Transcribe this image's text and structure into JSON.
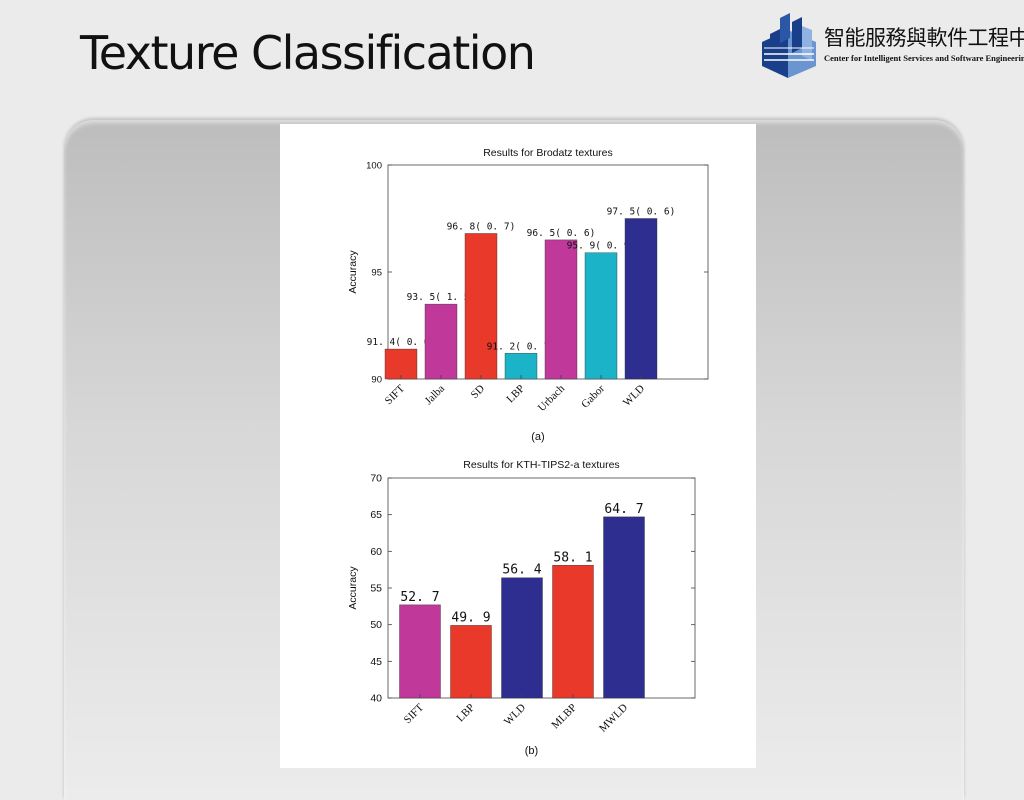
{
  "slide": {
    "title": "Texture Classification"
  },
  "logo": {
    "name_cn": "智能服務與軟件工程中心",
    "name_en": "Center for Intelligent Services and Software Engineering",
    "colors": {
      "dark": "#1a3f8a",
      "light": "#6b95d1"
    }
  },
  "chart_data": [
    {
      "type": "bar",
      "title": "Results for Brodatz textures",
      "caption": "(a)",
      "xlabel": "",
      "ylabel": "Accuracy",
      "ylim": [
        90,
        100
      ],
      "yticks": [
        "90",
        "95",
        "100"
      ],
      "categories": [
        "SIFT",
        "Jalba",
        "SD",
        "LBP",
        "Urbach",
        "Gabor",
        "WLD"
      ],
      "values": [
        91.4,
        93.5,
        96.8,
        91.2,
        96.5,
        95.9,
        97.5
      ],
      "labels": [
        "91. 4( 0. 6)",
        "93. 5( 1. 5)",
        "96. 8( 0. 7)",
        "91. 2( 0. 7)",
        "96. 5( 0. 6)",
        "95. 9( 0. 9)",
        "97. 5( 0. 6)"
      ],
      "colors": [
        "#e8392a",
        "#c0389a",
        "#e8392a",
        "#1ab3c7",
        "#c0389a",
        "#1ab3c7",
        "#2e2e91"
      ],
      "grid": false,
      "legend": "none"
    },
    {
      "type": "bar",
      "title": "Results for KTH-TIPS2-a textures",
      "caption": "(b)",
      "xlabel": "",
      "ylabel": "Accuracy",
      "ylim": [
        40,
        70
      ],
      "yticks": [
        "40",
        "45",
        "50",
        "55",
        "60",
        "65",
        "70"
      ],
      "categories": [
        "SIFT",
        "LBP",
        "WLD",
        "MLBP",
        "MWLD"
      ],
      "values": [
        52.7,
        49.9,
        56.4,
        58.1,
        64.7
      ],
      "labels": [
        "52. 7",
        "49. 9",
        "56. 4",
        "58. 1",
        "64. 7"
      ],
      "colors": [
        "#c0389a",
        "#e8392a",
        "#2e2e91",
        "#e8392a",
        "#2e2e91"
      ],
      "grid": false,
      "legend": "none"
    }
  ]
}
